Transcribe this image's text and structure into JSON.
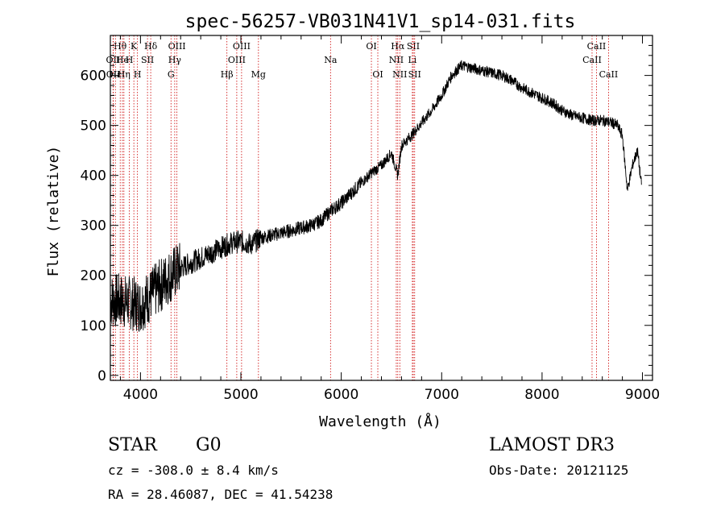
{
  "chart_data": {
    "type": "line",
    "title": "spec-56257-VB031N41V1_sp14-031.fits",
    "xlabel": "Wavelength (Å)",
    "ylabel": "Flux (relative)",
    "xlim": [
      3700,
      9100
    ],
    "ylim": [
      -10,
      680
    ],
    "x_ticks": [
      4000,
      5000,
      6000,
      7000,
      8000,
      9000
    ],
    "y_ticks": [
      0,
      100,
      200,
      300,
      400,
      500,
      600
    ],
    "series": [
      {
        "name": "flux",
        "x": [
          3700,
          3800,
          3900,
          4000,
          4100,
          4200,
          4300,
          4400,
          4500,
          4600,
          4700,
          4800,
          4900,
          5000,
          5100,
          5200,
          5300,
          5400,
          5500,
          5600,
          5700,
          5800,
          5850,
          5900,
          6000,
          6100,
          6200,
          6300,
          6400,
          6500,
          6563,
          6600,
          6700,
          6800,
          6900,
          7000,
          7100,
          7200,
          7300,
          7400,
          7500,
          7600,
          7700,
          7800,
          7900,
          8000,
          8100,
          8200,
          8300,
          8400,
          8500,
          8600,
          8700,
          8750,
          8800,
          8850,
          8900,
          8950,
          8990
        ],
        "y": [
          150,
          150,
          145,
          140,
          160,
          180,
          200,
          215,
          225,
          235,
          245,
          255,
          265,
          268,
          262,
          275,
          280,
          285,
          290,
          295,
          300,
          310,
          320,
          330,
          345,
          365,
          385,
          405,
          420,
          445,
          400,
          460,
          480,
          505,
          530,
          560,
          600,
          620,
          615,
          610,
          605,
          600,
          590,
          575,
          565,
          555,
          545,
          530,
          520,
          515,
          510,
          510,
          505,
          500,
          480,
          370,
          420,
          450,
          380
        ]
      }
    ],
    "line_markers": {
      "row1": [
        {
          "label": "Hθ",
          "x": 3798
        },
        {
          "label": "K",
          "x": 3934
        },
        {
          "label": "Hδ",
          "x": 4102
        },
        {
          "label": "OIII",
          "x": 4363
        },
        {
          "label": "OIII",
          "x": 5007
        },
        {
          "label": "OI",
          "x": 6300
        },
        {
          "label": "Hα",
          "x": 6563
        },
        {
          "label": "SII",
          "x": 6717
        },
        {
          "label": "CaII",
          "x": 8542
        }
      ],
      "row2": [
        {
          "label": "OII",
          "x": 3727
        },
        {
          "label": "He",
          "x": 3820
        },
        {
          "label": "H",
          "x": 3889
        },
        {
          "label": "SII",
          "x": 4070
        },
        {
          "label": "Hγ",
          "x": 4341
        },
        {
          "label": "OIII",
          "x": 4959
        },
        {
          "label": "Na",
          "x": 5893
        },
        {
          "label": "NII",
          "x": 6548
        },
        {
          "label": "Li",
          "x": 6708
        },
        {
          "label": "CaII",
          "x": 8498
        }
      ],
      "row3": [
        {
          "label": "OII",
          "x": 3729
        },
        {
          "label": "Hε",
          "x": 3750
        },
        {
          "label": "Hη",
          "x": 3835
        },
        {
          "label": "H",
          "x": 3970
        },
        {
          "label": "G",
          "x": 4304
        },
        {
          "label": "Hβ",
          "x": 4861
        },
        {
          "label": "Mg",
          "x": 5175
        },
        {
          "label": "OI",
          "x": 6364
        },
        {
          "label": "NII",
          "x": 6583
        },
        {
          "label": "SII",
          "x": 6731
        },
        {
          "label": "CaII",
          "x": 8662
        }
      ]
    }
  },
  "info": {
    "class_label": "STAR",
    "subclass": "G0",
    "survey": "LAMOST DR3",
    "cz": "cz = -308.0 ± 8.4 km/s",
    "obs_date": "Obs-Date: 20121125",
    "radec": "RA =  28.46087, DEC =  41.54238"
  },
  "colors": {
    "marker_line": "#cc0000",
    "spectrum": "#000000"
  }
}
